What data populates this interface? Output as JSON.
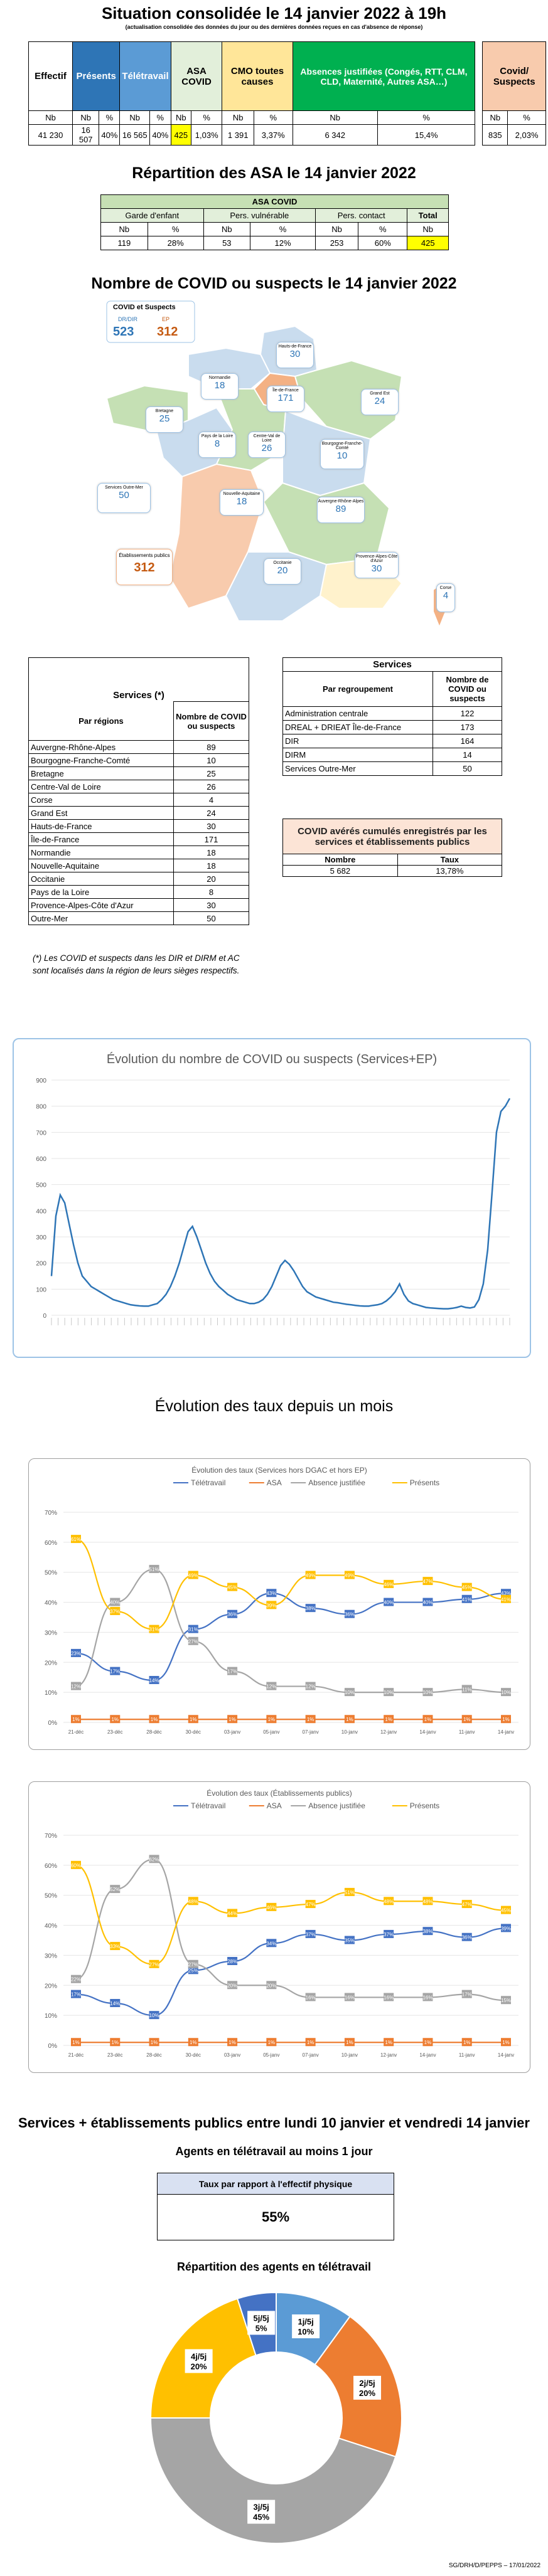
{
  "header": {
    "title": "Situation consolidée le 14 janvier 2022 à 19h",
    "subtitle": "(actualisation consolidée des données du jour ou des dernières données reçues en cas d'absence de réponse)"
  },
  "situation_table": {
    "headers": [
      "Effectif",
      "Présents",
      "Télétravail",
      "ASA COVID",
      "CMO toutes causes",
      "Absences justifiées (Congés, RTT, CLM, CLD, Maternité, Autres ASA…)",
      "Covid/ Suspects"
    ],
    "subheaders": [
      "Nb",
      "Nb",
      "%",
      "Nb",
      "%",
      "Nb",
      "%",
      "Nb",
      "%",
      "Nb",
      "%",
      "Nb",
      "%"
    ],
    "values": [
      "41 230",
      "16 507",
      "40%",
      "16 565",
      "40%",
      "425",
      "1,03%",
      "1 391",
      "3,37%",
      "6 342",
      "15,4%",
      "835",
      "2,03%"
    ]
  },
  "asa_section": {
    "title": "Répartition des ASA le 14 janvier 2022",
    "table_title": "ASA COVID",
    "cols": [
      "Garde d'enfant",
      "Pers. vulnérable",
      "Pers. contact",
      "Total"
    ],
    "subheaders": [
      "Nb",
      "%",
      "Nb",
      "%",
      "Nb",
      "%",
      "Nb"
    ],
    "values": [
      "119",
      "28%",
      "53",
      "12%",
      "253",
      "60%",
      "425"
    ]
  },
  "map_section": {
    "title": "Nombre de COVID ou suspects le 14 janvier 2022",
    "legend_title": "COVID et Suspects",
    "legend_labels": [
      "DR/DIR",
      "EP"
    ],
    "legend_values": [
      "523",
      "312"
    ],
    "regions": [
      {
        "name": "Hauts-de-France",
        "value": "30"
      },
      {
        "name": "Normandie",
        "value": "18"
      },
      {
        "name": "Île-de-France",
        "value": "171"
      },
      {
        "name": "Grand Est",
        "value": "24"
      },
      {
        "name": "Bretagne",
        "value": "25"
      },
      {
        "name": "Pays de la Loire",
        "value": "8"
      },
      {
        "name": "Centre-Val de Loire",
        "value": "26"
      },
      {
        "name": "Bourgogne-Franche-Comté",
        "value": "10"
      },
      {
        "name": "Nouvelle-Aquitaine",
        "value": "18"
      },
      {
        "name": "Auvergne-Rhône-Alpes",
        "value": "89"
      },
      {
        "name": "Occitanie",
        "value": "20"
      },
      {
        "name": "Provence-Alpes-Côte d'Azur",
        "value": "30"
      },
      {
        "name": "Corse",
        "value": "4"
      },
      {
        "name": "Services Outre-Mer",
        "value": "50"
      },
      {
        "name": "Établissements publics",
        "value": "312"
      }
    ]
  },
  "services_regions": {
    "title": "Services (*)",
    "col1": "Par régions",
    "col2": "Nombre de COVID ou suspects",
    "rows": [
      [
        "Auvergne-Rhône-Alpes",
        "89"
      ],
      [
        "Bourgogne-Franche-Comté",
        "10"
      ],
      [
        "Bretagne",
        "25"
      ],
      [
        "Centre-Val de Loire",
        "26"
      ],
      [
        "Corse",
        "4"
      ],
      [
        "Grand Est",
        "24"
      ],
      [
        "Hauts-de-France",
        "30"
      ],
      [
        "Île-de-France",
        "171"
      ],
      [
        "Normandie",
        "18"
      ],
      [
        "Nouvelle-Aquitaine",
        "18"
      ],
      [
        "Occitanie",
        "20"
      ],
      [
        "Pays de la Loire",
        "8"
      ],
      [
        "Provence-Alpes-Côte d'Azur",
        "30"
      ],
      [
        "Outre-Mer",
        "50"
      ]
    ],
    "note": "(*) Les COVID et suspects dans les DIR et DIRM et AC sont localisés dans la région de leurs sièges respectifs."
  },
  "services_regroupement": {
    "title": "Services",
    "col1": "Par regroupement",
    "col2": "Nombre de COVID ou suspects",
    "rows": [
      [
        "Administration centrale",
        "122"
      ],
      [
        "DREAL + DRIEAT Île-de-France",
        "173"
      ],
      [
        "DIR",
        "164"
      ],
      [
        "DIRM",
        "14"
      ],
      [
        "Services Outre-Mer",
        "50"
      ]
    ]
  },
  "cumul": {
    "title": "COVID avérés cumulés enregistrés par les services et établissements publics",
    "col1": "Nombre",
    "col2": "Taux",
    "v1": "5 682",
    "v2": "13,78%"
  },
  "chart_data": [
    {
      "type": "line",
      "title": "Évolution du nombre de COVID ou suspects (Services+EP)",
      "ylim": [
        0,
        900
      ],
      "yticks": [
        0,
        100,
        200,
        300,
        400,
        500,
        600,
        700,
        800,
        900
      ],
      "series": [
        {
          "values": [
            150,
            380,
            460,
            430,
            350,
            270,
            200,
            150,
            130,
            110,
            100,
            90,
            80,
            70,
            60,
            55,
            50,
            45,
            40,
            38,
            36,
            35,
            35,
            40,
            45,
            60,
            80,
            110,
            150,
            200,
            260,
            320,
            340,
            300,
            250,
            200,
            160,
            130,
            110,
            95,
            80,
            70,
            60,
            55,
            50,
            45,
            45,
            50,
            60,
            80,
            110,
            150,
            190,
            210,
            195,
            170,
            140,
            110,
            90,
            80,
            70,
            65,
            60,
            55,
            50,
            48,
            45,
            42,
            40,
            38,
            36,
            35,
            35,
            38,
            40,
            45,
            55,
            70,
            90,
            120,
            80,
            55,
            45,
            40,
            35,
            30,
            28,
            27,
            26,
            25,
            25,
            27,
            30,
            35,
            30,
            28,
            32,
            60,
            120,
            250,
            470,
            700,
            780,
            800,
            830
          ]
        }
      ]
    },
    {
      "type": "line",
      "title": "Évolution des taux (Services hors DGAC et hors EP)",
      "categories": [
        "21-déc",
        "23-déc",
        "28-déc",
        "30-déc",
        "03-janv",
        "05-janv",
        "07-janv",
        "10-janv",
        "12-janv",
        "14-janv",
        "11-janv",
        "14-janv"
      ],
      "ylim": [
        0,
        70
      ],
      "yticks": [
        0,
        10,
        20,
        30,
        40,
        50,
        60,
        70
      ],
      "series": [
        {
          "name": "Télétravail",
          "color": "#4472c4",
          "values": [
            23,
            17,
            14,
            31,
            36,
            43,
            38,
            36,
            40,
            40,
            41,
            43
          ]
        },
        {
          "name": "ASA",
          "color": "#ed7d31",
          "values": [
            1,
            1,
            1,
            1,
            1,
            1,
            1,
            1,
            1,
            1,
            1,
            1
          ]
        },
        {
          "name": "Absence justifiée",
          "color": "#a5a5a5",
          "values": [
            12,
            40,
            51,
            27,
            17,
            12,
            12,
            10,
            10,
            10,
            11,
            10
          ]
        },
        {
          "name": "Présents",
          "color": "#ffc000",
          "values": [
            61,
            37,
            31,
            49,
            45,
            39,
            49,
            49,
            46,
            47,
            45,
            41
          ]
        }
      ]
    },
    {
      "type": "line",
      "title": "Évolution des taux (Établissements publics)",
      "categories": [
        "21-déc",
        "23-déc",
        "28-déc",
        "30-déc",
        "03-janv",
        "05-janv",
        "07-janv",
        "10-janv",
        "12-janv",
        "14-janv",
        "11-janv",
        "14-janv"
      ],
      "ylim": [
        0,
        70
      ],
      "yticks": [
        0,
        10,
        20,
        30,
        40,
        50,
        60,
        70
      ],
      "series": [
        {
          "name": "Télétravail",
          "color": "#4472c4",
          "values": [
            17,
            14,
            10,
            25,
            28,
            34,
            37,
            35,
            37,
            38,
            36,
            39
          ]
        },
        {
          "name": "ASA",
          "color": "#ed7d31",
          "values": [
            1,
            1,
            1,
            1,
            1,
            1,
            1,
            1,
            1,
            1,
            1,
            1
          ]
        },
        {
          "name": "Absence justifiée",
          "color": "#a5a5a5",
          "values": [
            22,
            52,
            62,
            27,
            20,
            20,
            16,
            16,
            16,
            16,
            17,
            15
          ]
        },
        {
          "name": "Présents",
          "color": "#ffc000",
          "values": [
            60,
            33,
            27,
            48,
            44,
            46,
            47,
            51,
            48,
            48,
            47,
            45
          ]
        }
      ]
    },
    {
      "type": "pie",
      "title": "Répartition des agents en télétravail",
      "slices": [
        {
          "label": "1j/5j",
          "value": 10,
          "color": "#5b9bd5"
        },
        {
          "label": "2j/5j",
          "value": 20,
          "color": "#ed7d31"
        },
        {
          "label": "3j/5j",
          "value": 45,
          "color": "#a5a5a5"
        },
        {
          "label": "4j/5j",
          "value": 20,
          "color": "#ffc000"
        },
        {
          "label": "5j/5j",
          "value": 5,
          "color": "#4472c4"
        }
      ]
    }
  ],
  "rates_section": {
    "title": "Évolution des taux depuis un mois"
  },
  "tele_section": {
    "title": "Services + établissements publics entre lundi 10 janvier et vendredi 14 janvier",
    "subtitle": "Agents en télétravail au moins 1 jour",
    "box_title": "Taux par rapport à l'effectif physique",
    "box_value": "55%",
    "pie_title": "Répartition des agents en télétravail"
  },
  "footer": "SG/DRH/D/PEPPS – 17/01/2022"
}
